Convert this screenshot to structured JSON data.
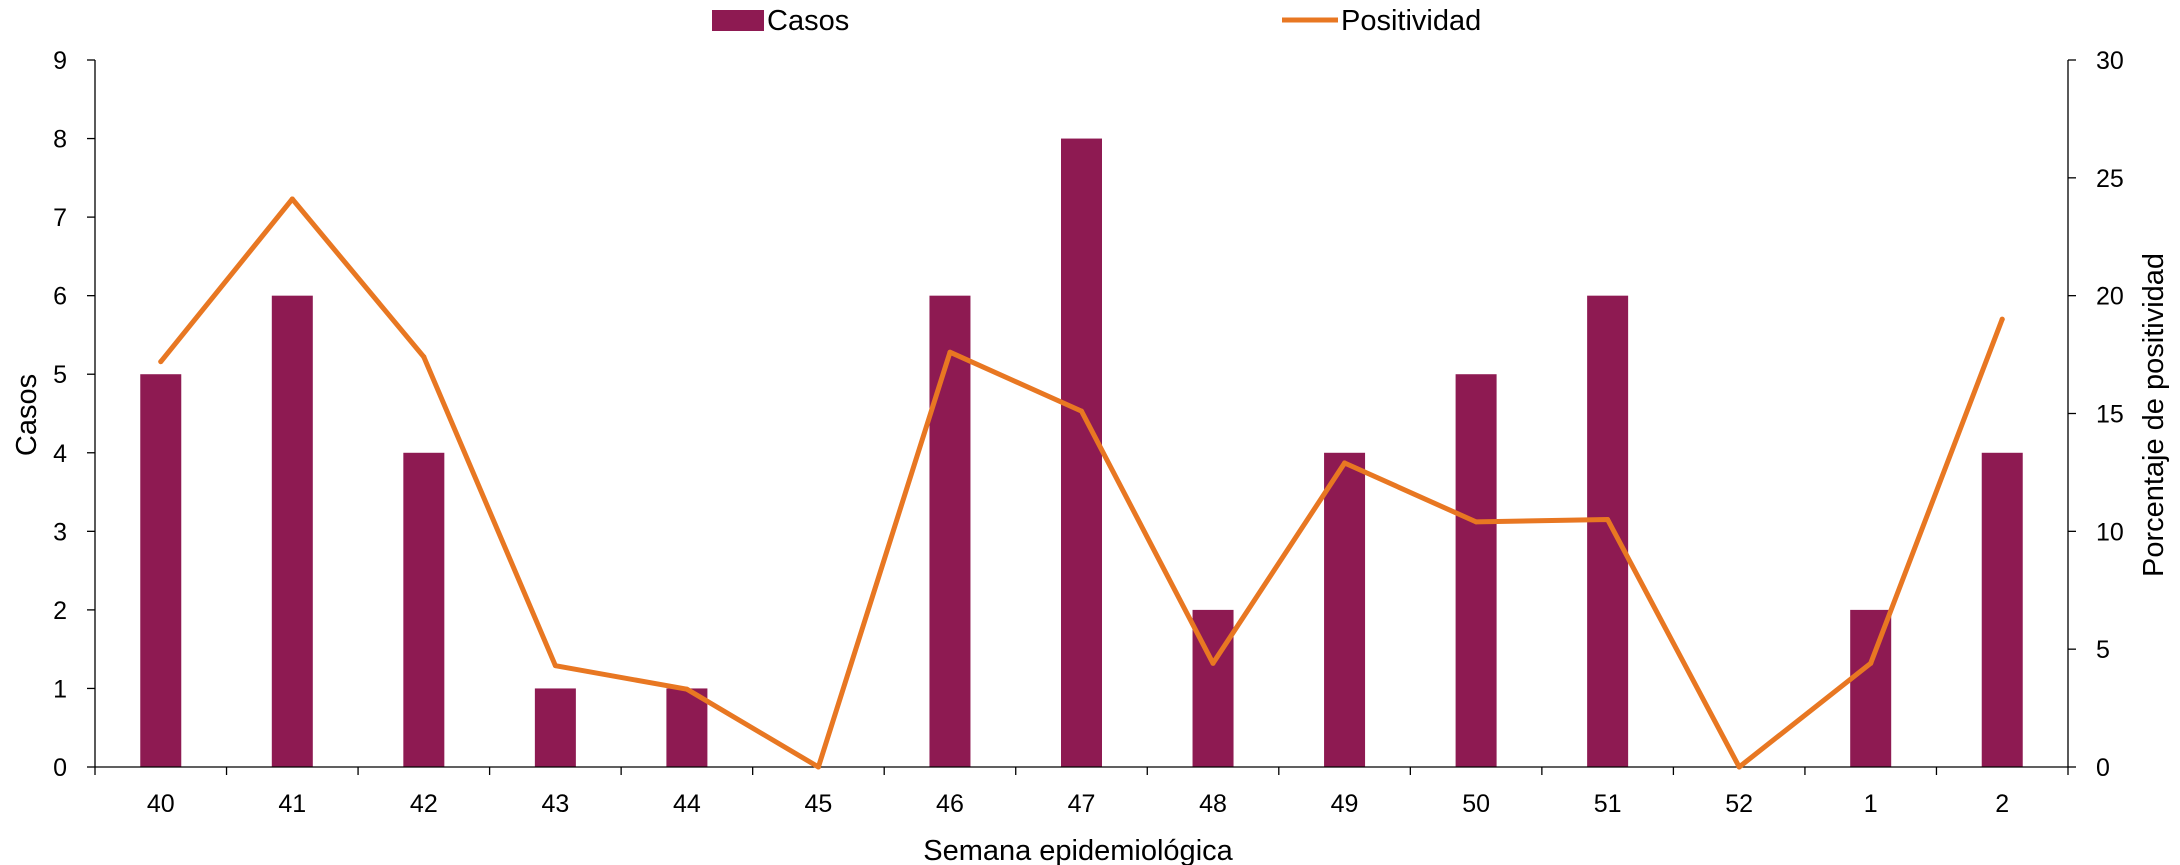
{
  "chart_data": {
    "type": "bar+line",
    "title": "",
    "xlabel": "Semana epidemiológica",
    "ylabel_left": "Casos",
    "ylabel_right": "Porcentaje de positividad",
    "categories": [
      "40",
      "41",
      "42",
      "43",
      "44",
      "45",
      "46",
      "47",
      "48",
      "49",
      "50",
      "51",
      "52",
      "1",
      "2"
    ],
    "y_left_lim": [
      0,
      9
    ],
    "y_left_ticks": [
      "0",
      "1",
      "2",
      "3",
      "4",
      "5",
      "6",
      "7",
      "8",
      "9"
    ],
    "y_right_lim": [
      0,
      30
    ],
    "y_right_ticks": [
      "0",
      "5",
      "10",
      "15",
      "20",
      "25",
      "30"
    ],
    "grid": false,
    "legend_position": "top",
    "series": [
      {
        "name": "Casos",
        "type": "bar",
        "axis": "left",
        "color": "#8E1A52",
        "values": [
          5,
          6,
          4,
          1,
          1,
          0,
          6,
          8,
          2,
          4,
          5,
          6,
          0,
          2,
          4
        ]
      },
      {
        "name": "Positividad",
        "type": "line",
        "axis": "right",
        "color": "#E87722",
        "values": [
          17.2,
          24.1,
          17.4,
          4.3,
          3.3,
          0,
          17.6,
          15.1,
          4.4,
          12.9,
          10.4,
          10.5,
          0,
          4.4,
          19.0
        ]
      }
    ]
  }
}
